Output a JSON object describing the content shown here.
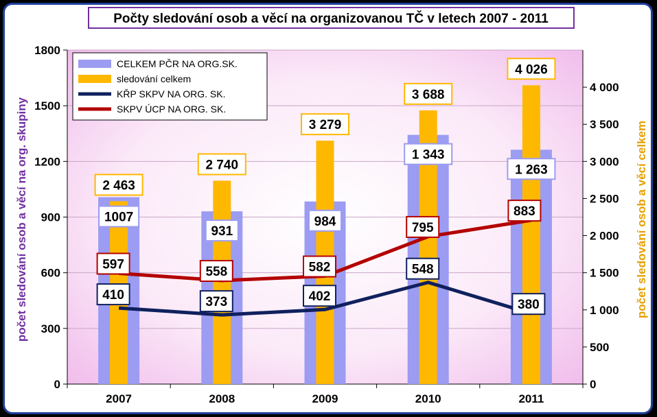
{
  "colors": {
    "frame": "#1f3f9a",
    "plot_bg_edge": "#f3c6ee",
    "plot_bg_center": "#ffffff",
    "bar_wide": "#9b9cf2",
    "bar_narrow": "#ffb800",
    "line_krp": "#10205e",
    "line_skpv": "#b30000",
    "left_axis_label": "#7030a0",
    "right_axis_label": "#e6a000"
  },
  "chart_data": {
    "type": "bar",
    "title": "Počty sledování osob a věcí na organizovanou TČ v letech 2007 - 2011",
    "categories": [
      "2007",
      "2008",
      "2009",
      "2010",
      "2011"
    ],
    "ylabel": "počet sledování osob a věcí na org. skupiny",
    "y2label": "počet sledování osob a věcí celkem",
    "ylim": [
      0,
      1800
    ],
    "y2lim": [
      0,
      4500
    ],
    "yticks": [
      "0",
      "300",
      "600",
      "900",
      "1200",
      "1500",
      "1800"
    ],
    "yticks_values": [
      0,
      300,
      600,
      900,
      1200,
      1500,
      1800
    ],
    "y2ticks": [
      "0",
      "500",
      "1 000",
      "1 500",
      "2 000",
      "2 500",
      "3 000",
      "3 500",
      "4 000"
    ],
    "y2ticks_values": [
      0,
      500,
      1000,
      1500,
      2000,
      2500,
      3000,
      3500,
      4000
    ],
    "legend_position": "top-left",
    "series": [
      {
        "name": "CELKEM PČR NA ORG.SK.",
        "kind": "bar",
        "axis": "left",
        "values": [
          1007,
          931,
          984,
          1343,
          1263
        ],
        "labels": [
          "1007",
          "931",
          "984",
          "1 343",
          "1 263"
        ]
      },
      {
        "name": "sledování celkem",
        "kind": "bar",
        "axis": "right",
        "values": [
          2463,
          2740,
          3279,
          3688,
          4026
        ],
        "labels": [
          "2 463",
          "2 740",
          "3 279",
          "3 688",
          "4 026"
        ]
      },
      {
        "name": "KŘP SKPV NA ORG. SK.",
        "kind": "line",
        "axis": "left",
        "values": [
          410,
          373,
          402,
          548,
          380
        ],
        "labels": [
          "410",
          "373",
          "402",
          "548",
          "380"
        ]
      },
      {
        "name": "SKPV ÚCP NA ORG. SK.",
        "kind": "line",
        "axis": "left",
        "values": [
          597,
          558,
          582,
          795,
          883
        ],
        "labels": [
          "597",
          "558",
          "582",
          "795",
          "883"
        ]
      }
    ]
  }
}
